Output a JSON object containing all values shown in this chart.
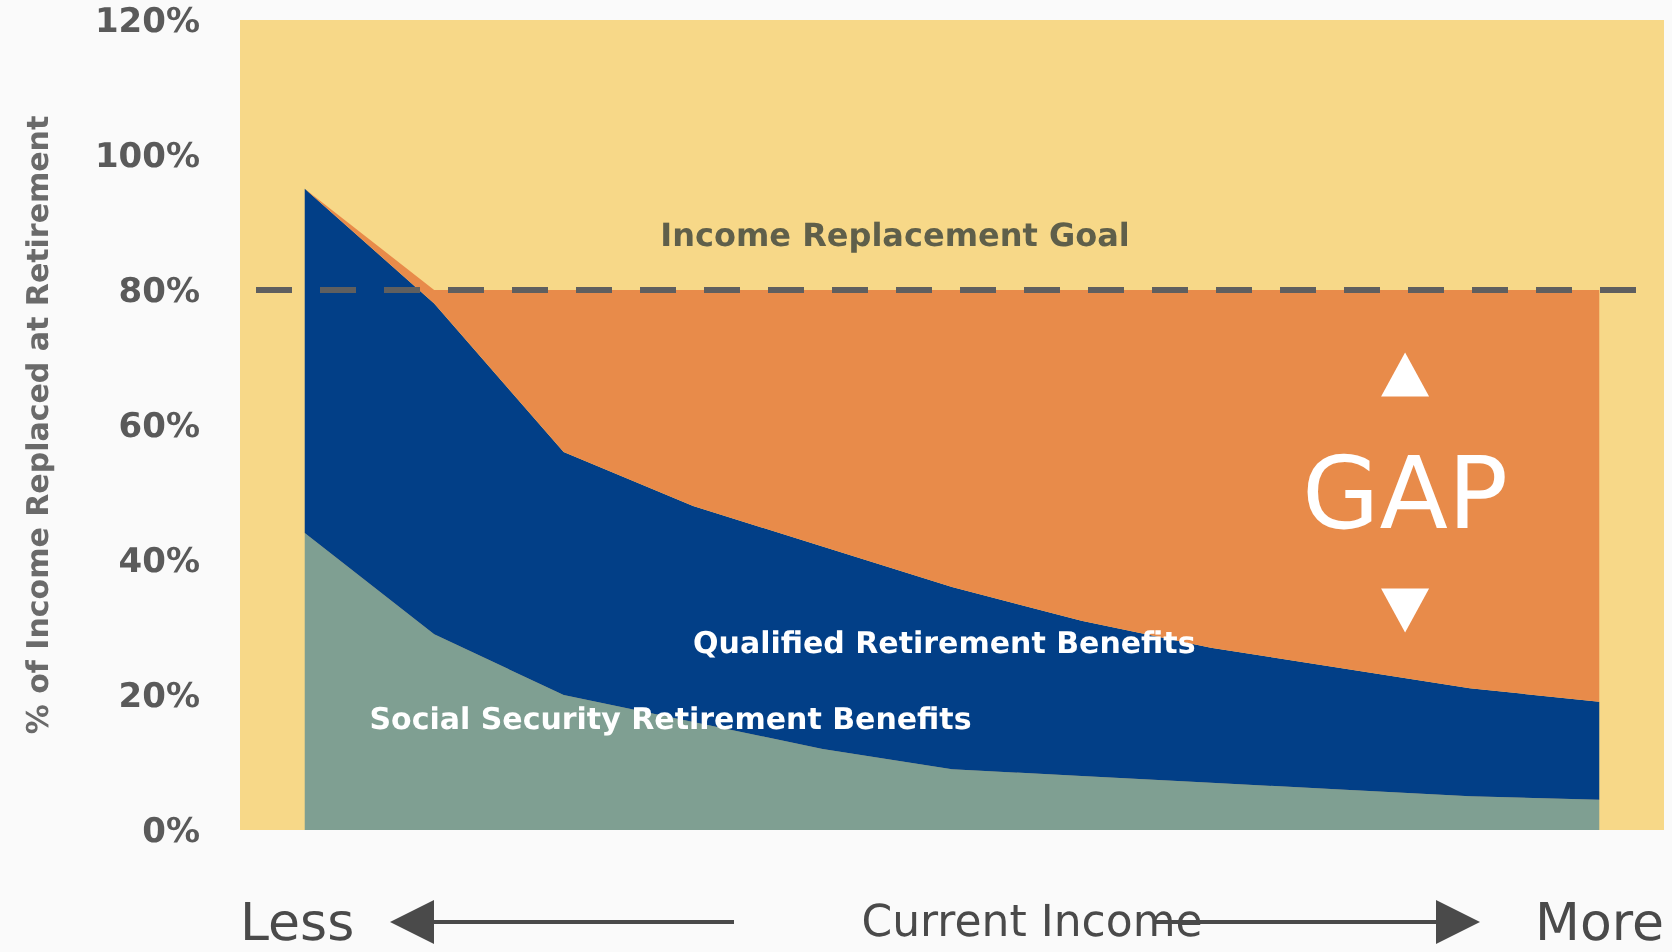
{
  "chart_data": {
    "type": "area",
    "stacked": true,
    "xlabel": "Current Income",
    "ylabel": "% of Income Replaced at Retirement",
    "categories": [
      null,
      null,
      null,
      null,
      null,
      null,
      null,
      null,
      null,
      null,
      null
    ],
    "series": [
      {
        "name": "Social Security Retirement Benefits",
        "color": "#7f9f92",
        "values": [
          44,
          29,
          20,
          16,
          12,
          9,
          8,
          7,
          6,
          5,
          4.5
        ]
      },
      {
        "name": "Qualified Retirement Benefits",
        "color": "#023f87",
        "values": [
          51,
          49,
          36,
          32,
          30,
          27,
          23,
          20,
          18,
          16,
          14.5
        ]
      },
      {
        "name": "GAP",
        "color": "#e88b4a",
        "values": [
          0,
          2,
          24,
          32,
          38,
          44,
          49,
          53,
          56,
          59,
          61
        ]
      }
    ],
    "ylim": [
      0,
      120
    ],
    "yticks": [
      {
        "value": 0,
        "label": "0%"
      },
      {
        "value": 20,
        "label": "20%"
      },
      {
        "value": 40,
        "label": "40%"
      },
      {
        "value": 60,
        "label": "60%"
      },
      {
        "value": 80,
        "label": "80%"
      },
      {
        "value": 100,
        "label": "100%"
      },
      {
        "value": 120,
        "label": "120%"
      }
    ],
    "ref_lines": [
      {
        "axis": "y",
        "value": 80,
        "label": "Income Replacement Goal",
        "color": "#5f5f5f",
        "line_style": "dashed"
      }
    ],
    "bands": [
      {
        "axis": "y",
        "from": 0,
        "to": 120,
        "color": "#f7d888"
      }
    ],
    "annotations": [
      "Less",
      "More"
    ],
    "grid": false,
    "legend": false
  }
}
